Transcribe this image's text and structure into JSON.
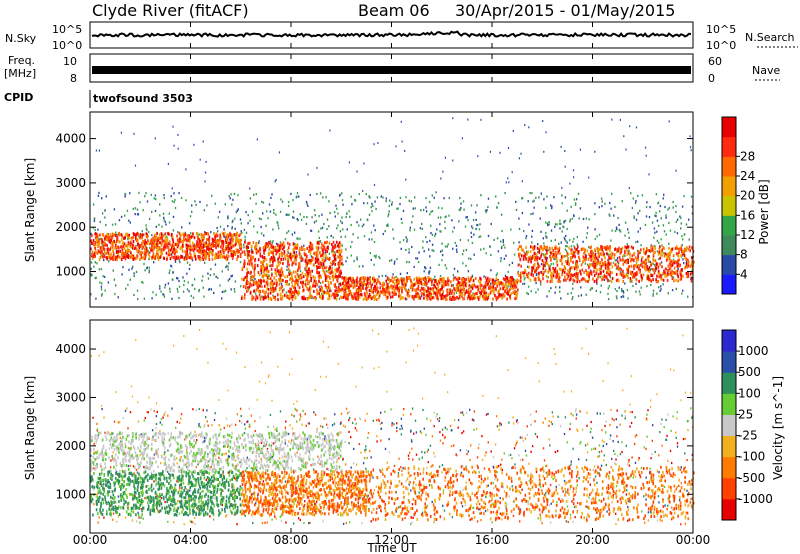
{
  "header": {
    "title": "Clyde River (fitACF)",
    "beam": "Beam 06",
    "dates": "30/Apr/2015 - 01/May/2015"
  },
  "strips": {
    "nsky_label": "N.Sky",
    "nsky_ticks": [
      "10^5",
      "10^0"
    ],
    "nsearch_label": "N.Search",
    "freq_label": "Freq.",
    "freq_unit": "[MHz]",
    "freq_ticks": [
      "10",
      "8"
    ],
    "nave_label": "Nave",
    "nave_ticks": [
      "60",
      "0"
    ],
    "cpid_label": "CPID",
    "cpid_value": "twofsound 3503"
  },
  "colors": {
    "power": [
      "#1a1aff",
      "#2a4aa8",
      "#3f8a5a",
      "#33a64a",
      "#c8c400",
      "#f0a000",
      "#ff6a00",
      "#ff2a10",
      "#e80000"
    ],
    "velocity": [
      "#e60000",
      "#ff4000",
      "#ff7a00",
      "#f0b020",
      "#c8c8c8",
      "#66cc33",
      "#2f8f5a",
      "#2a4fa8",
      "#2a2ad0"
    ]
  },
  "chart_data": [
    {
      "type": "heatmap",
      "name": "power",
      "ylabel": "Slant Range [km]",
      "xlabel": "",
      "yticks": [
        "1000",
        "2000",
        "3000",
        "4000"
      ],
      "ylim": [
        200,
        4600
      ],
      "xlim": [
        0,
        24
      ],
      "colorbar_label": "Power [dB]",
      "colorbar_ticks": [
        "4",
        "8",
        "12",
        "16",
        "20",
        "24",
        "28"
      ],
      "bands": [
        {
          "t": [
            0,
            6
          ],
          "range": [
            1300,
            1900
          ],
          "level": "high"
        },
        {
          "t": [
            6,
            10
          ],
          "range": [
            400,
            1700
          ],
          "level": "high"
        },
        {
          "t": [
            10,
            17
          ],
          "range": [
            400,
            900
          ],
          "level": "high"
        },
        {
          "t": [
            17,
            24
          ],
          "range": [
            800,
            1600
          ],
          "level": "high"
        }
      ]
    },
    {
      "type": "heatmap",
      "name": "velocity",
      "ylabel": "Slant Range [km]",
      "xlabel": "Time UT",
      "yticks": [
        "1000",
        "2000",
        "3000",
        "4000"
      ],
      "xticks": [
        "00:00",
        "04:00",
        "08:00",
        "12:00",
        "16:00",
        "20:00",
        "00:00"
      ],
      "ylim": [
        200,
        4600
      ],
      "xlim": [
        0,
        24
      ],
      "colorbar_label": "Velocity [m s^-1]",
      "colorbar_ticks": [
        "-1000",
        "-500",
        "-100",
        "-25",
        "25",
        "100",
        "500",
        "1000"
      ],
      "bands": [
        {
          "t": [
            0,
            6
          ],
          "range": [
            600,
            1500
          ],
          "level": "positive"
        },
        {
          "t": [
            0,
            10
          ],
          "range": [
            1500,
            2300
          ],
          "level": "near-zero"
        },
        {
          "t": [
            6,
            11
          ],
          "range": [
            600,
            1500
          ],
          "level": "negative"
        },
        {
          "t": [
            11,
            24
          ],
          "range": [
            500,
            1600
          ],
          "level": "negative"
        }
      ]
    }
  ]
}
